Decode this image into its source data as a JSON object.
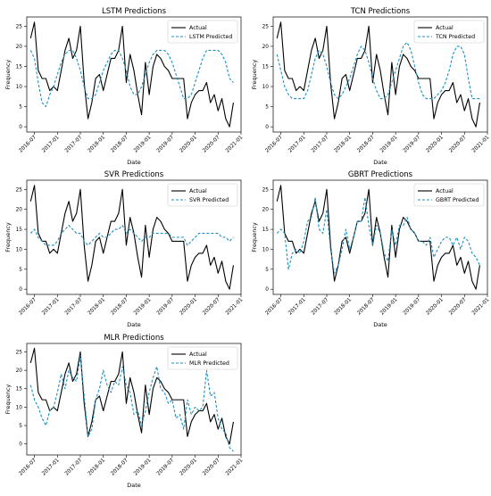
{
  "colors": {
    "actual": "#000000",
    "predicted": "#1f8fbf"
  },
  "chart_data": [
    {
      "type": "line",
      "title": "LSTM Predictions",
      "xlabel": "Date",
      "ylabel": "Frequency",
      "x": [
        "2016-06",
        "2016-07",
        "2016-08",
        "2016-09",
        "2016-10",
        "2016-11",
        "2016-12",
        "2017-01",
        "2017-02",
        "2017-03",
        "2017-04",
        "2017-05",
        "2017-06",
        "2017-07",
        "2017-08",
        "2017-09",
        "2017-10",
        "2017-11",
        "2017-12",
        "2018-01",
        "2018-02",
        "2018-03",
        "2018-04",
        "2018-05",
        "2018-06",
        "2018-07",
        "2018-08",
        "2018-09",
        "2018-10",
        "2018-11",
        "2018-12",
        "2019-01",
        "2019-02",
        "2019-03",
        "2019-04",
        "2019-05",
        "2019-06",
        "2019-07",
        "2019-08",
        "2019-09",
        "2019-10",
        "2019-11",
        "2019-12",
        "2020-01",
        "2020-02",
        "2020-03",
        "2020-04",
        "2020-05",
        "2020-06",
        "2020-07",
        "2020-08",
        "2020-09",
        "2020-10",
        "2020-11"
      ],
      "xticks": [
        "2016-07",
        "2017-01",
        "2017-07",
        "2018-01",
        "2018-07",
        "2019-01",
        "2019-07",
        "2020-01",
        "2020-07",
        "2021-01"
      ],
      "yticks": [
        0,
        5,
        10,
        15,
        20,
        25
      ],
      "ylim": [
        -1.3,
        27.3
      ],
      "xlim": [
        "2016-05",
        "2021-01"
      ],
      "legend": "upper right",
      "series": [
        {
          "name": "Actual",
          "style": "solid",
          "values": [
            22,
            26,
            14,
            12,
            12,
            9,
            10,
            9,
            14,
            19,
            22,
            17,
            19,
            25,
            11,
            2,
            6,
            12,
            13,
            9,
            13,
            17,
            17,
            19,
            25,
            11,
            18,
            14,
            8,
            3,
            16,
            8,
            15,
            18,
            17,
            15,
            14,
            12,
            12,
            12,
            12,
            2,
            6,
            8,
            9,
            9,
            11,
            6,
            8,
            4,
            7,
            2,
            0,
            6
          ]
        },
        {
          "name": "LSTM Predicted",
          "style": "dashed",
          "values": [
            19,
            17,
            11,
            6,
            5,
            8,
            10,
            13,
            16,
            18,
            19,
            19,
            17,
            14,
            10,
            7,
            7,
            8,
            11,
            14,
            16,
            18,
            19,
            19,
            17,
            14,
            10,
            8,
            8,
            10,
            13,
            16,
            18,
            19,
            19,
            19,
            18,
            16,
            13,
            10,
            7,
            7,
            8,
            11,
            14,
            17,
            19,
            19,
            19,
            19,
            18,
            16,
            12,
            11
          ]
        }
      ]
    },
    {
      "type": "line",
      "title": "TCN Predictions",
      "xlabel": "Date",
      "ylabel": "Frequency",
      "x": [
        "2016-06",
        "2016-07",
        "2016-08",
        "2016-09",
        "2016-10",
        "2016-11",
        "2016-12",
        "2017-01",
        "2017-02",
        "2017-03",
        "2017-04",
        "2017-05",
        "2017-06",
        "2017-07",
        "2017-08",
        "2017-09",
        "2017-10",
        "2017-11",
        "2017-12",
        "2018-01",
        "2018-02",
        "2018-03",
        "2018-04",
        "2018-05",
        "2018-06",
        "2018-07",
        "2018-08",
        "2018-09",
        "2018-10",
        "2018-11",
        "2018-12",
        "2019-01",
        "2019-02",
        "2019-03",
        "2019-04",
        "2019-05",
        "2019-06",
        "2019-07",
        "2019-08",
        "2019-09",
        "2019-10",
        "2019-11",
        "2019-12",
        "2020-01",
        "2020-02",
        "2020-03",
        "2020-04",
        "2020-05",
        "2020-06",
        "2020-07",
        "2020-08",
        "2020-09",
        "2020-10",
        "2020-11"
      ],
      "xticks": [
        "2016-07",
        "2017-01",
        "2017-07",
        "2018-01",
        "2018-07",
        "2019-01",
        "2019-07",
        "2020-01",
        "2020-07",
        "2021-01"
      ],
      "yticks": [
        0,
        5,
        10,
        15,
        20,
        25
      ],
      "ylim": [
        -1.3,
        27.3
      ],
      "xlim": [
        "2016-05",
        "2021-01"
      ],
      "legend": "upper right",
      "series": [
        {
          "name": "Actual",
          "style": "solid",
          "values": [
            22,
            26,
            14,
            12,
            12,
            9,
            10,
            9,
            14,
            19,
            22,
            17,
            19,
            25,
            11,
            2,
            6,
            12,
            13,
            9,
            13,
            17,
            17,
            19,
            25,
            11,
            18,
            14,
            8,
            3,
            16,
            8,
            15,
            18,
            17,
            15,
            14,
            12,
            12,
            12,
            12,
            2,
            6,
            8,
            9,
            9,
            11,
            6,
            8,
            4,
            7,
            2,
            0,
            6
          ]
        },
        {
          "name": "TCN Predicted",
          "style": "dashed",
          "values": [
            18,
            14,
            10,
            8,
            7,
            7,
            7,
            7,
            9,
            13,
            17,
            19,
            18,
            15,
            11,
            8,
            7,
            8,
            10,
            12,
            15,
            18,
            20,
            19,
            16,
            12,
            9,
            7,
            7,
            8,
            11,
            14,
            17,
            20,
            21,
            19,
            15,
            11,
            8,
            7,
            7,
            7,
            8,
            9,
            11,
            14,
            18,
            20,
            20,
            18,
            12,
            7,
            7,
            7
          ]
        }
      ]
    },
    {
      "type": "line",
      "title": "SVR Predictions",
      "xlabel": "Date",
      "ylabel": "Frequency",
      "x": [
        "2016-06",
        "2016-07",
        "2016-08",
        "2016-09",
        "2016-10",
        "2016-11",
        "2016-12",
        "2017-01",
        "2017-02",
        "2017-03",
        "2017-04",
        "2017-05",
        "2017-06",
        "2017-07",
        "2017-08",
        "2017-09",
        "2017-10",
        "2017-11",
        "2017-12",
        "2018-01",
        "2018-02",
        "2018-03",
        "2018-04",
        "2018-05",
        "2018-06",
        "2018-07",
        "2018-08",
        "2018-09",
        "2018-10",
        "2018-11",
        "2018-12",
        "2019-01",
        "2019-02",
        "2019-03",
        "2019-04",
        "2019-05",
        "2019-06",
        "2019-07",
        "2019-08",
        "2019-09",
        "2019-10",
        "2019-11",
        "2019-12",
        "2020-01",
        "2020-02",
        "2020-03",
        "2020-04",
        "2020-05",
        "2020-06",
        "2020-07",
        "2020-08",
        "2020-09",
        "2020-10",
        "2020-11"
      ],
      "xticks": [
        "2016-07",
        "2017-01",
        "2017-07",
        "2018-01",
        "2018-07",
        "2019-01",
        "2019-07",
        "2020-01",
        "2020-07",
        "2021-01"
      ],
      "yticks": [
        0,
        5,
        10,
        15,
        20,
        25
      ],
      "ylim": [
        -1.3,
        27.3
      ],
      "xlim": [
        "2016-05",
        "2021-01"
      ],
      "legend": "upper right",
      "series": [
        {
          "name": "Actual",
          "style": "solid",
          "values": [
            22,
            26,
            14,
            12,
            12,
            9,
            10,
            9,
            14,
            19,
            22,
            17,
            19,
            25,
            11,
            2,
            6,
            12,
            13,
            9,
            13,
            17,
            17,
            19,
            25,
            11,
            18,
            14,
            8,
            3,
            16,
            8,
            15,
            18,
            17,
            15,
            14,
            12,
            12,
            12,
            12,
            2,
            6,
            8,
            9,
            9,
            11,
            6,
            8,
            4,
            7,
            2,
            0,
            6
          ]
        },
        {
          "name": "SVR Predicted",
          "style": "dashed",
          "values": [
            14,
            15,
            13,
            12,
            11,
            11,
            11,
            12,
            14,
            15,
            16,
            15,
            14,
            14,
            12,
            11,
            12,
            13,
            14,
            13,
            13,
            14,
            15,
            15,
            16,
            14,
            15,
            14,
            13,
            12,
            13,
            13,
            14,
            14,
            14,
            14,
            14,
            13,
            13,
            13,
            13,
            11,
            12,
            13,
            14,
            14,
            14,
            14,
            14,
            14,
            13,
            13,
            12,
            13
          ]
        }
      ]
    },
    {
      "type": "line",
      "title": "GBRT Predictions",
      "xlabel": "Date",
      "ylabel": "Frequency",
      "x": [
        "2016-06",
        "2016-07",
        "2016-08",
        "2016-09",
        "2016-10",
        "2016-11",
        "2016-12",
        "2017-01",
        "2017-02",
        "2017-03",
        "2017-04",
        "2017-05",
        "2017-06",
        "2017-07",
        "2017-08",
        "2017-09",
        "2017-10",
        "2017-11",
        "2017-12",
        "2018-01",
        "2018-02",
        "2018-03",
        "2018-04",
        "2018-05",
        "2018-06",
        "2018-07",
        "2018-08",
        "2018-09",
        "2018-10",
        "2018-11",
        "2018-12",
        "2019-01",
        "2019-02",
        "2019-03",
        "2019-04",
        "2019-05",
        "2019-06",
        "2019-07",
        "2019-08",
        "2019-09",
        "2019-10",
        "2019-11",
        "2019-12",
        "2020-01",
        "2020-02",
        "2020-03",
        "2020-04",
        "2020-05",
        "2020-06",
        "2020-07",
        "2020-08",
        "2020-09",
        "2020-10",
        "2020-11"
      ],
      "xticks": [
        "2016-07",
        "2017-01",
        "2017-07",
        "2018-01",
        "2018-07",
        "2019-01",
        "2019-07",
        "2020-01",
        "2020-07",
        "2021-01"
      ],
      "yticks": [
        0,
        5,
        10,
        15,
        20,
        25
      ],
      "ylim": [
        -1.3,
        27.3
      ],
      "xlim": [
        "2016-05",
        "2021-01"
      ],
      "legend": "upper right",
      "series": [
        {
          "name": "Actual",
          "style": "solid",
          "values": [
            22,
            26,
            14,
            12,
            12,
            9,
            10,
            9,
            14,
            19,
            22,
            17,
            19,
            25,
            11,
            2,
            6,
            12,
            13,
            9,
            13,
            17,
            17,
            19,
            25,
            11,
            18,
            14,
            8,
            3,
            16,
            8,
            15,
            18,
            17,
            15,
            14,
            12,
            12,
            12,
            12,
            2,
            6,
            8,
            9,
            9,
            11,
            6,
            8,
            4,
            7,
            2,
            0,
            6
          ]
        },
        {
          "name": "GBRT Predicted",
          "style": "dashed",
          "values": [
            14,
            15,
            14,
            5,
            9,
            10,
            9,
            12,
            17,
            18,
            23,
            15,
            14,
            20,
            10,
            4,
            6,
            10,
            15,
            10,
            13,
            17,
            17,
            23,
            16,
            11,
            16,
            14,
            9,
            7,
            15,
            11,
            16,
            16,
            18,
            15,
            14,
            12,
            12,
            11,
            13,
            8,
            10,
            12,
            13,
            13,
            11,
            13,
            10,
            13,
            12,
            9,
            8,
            6
          ]
        }
      ]
    },
    {
      "type": "line",
      "title": "MLR Predictions",
      "xlabel": "Date",
      "ylabel": "Frequency",
      "x": [
        "2016-06",
        "2016-07",
        "2016-08",
        "2016-09",
        "2016-10",
        "2016-11",
        "2016-12",
        "2017-01",
        "2017-02",
        "2017-03",
        "2017-04",
        "2017-05",
        "2017-06",
        "2017-07",
        "2017-08",
        "2017-09",
        "2017-10",
        "2017-11",
        "2017-12",
        "2018-01",
        "2018-02",
        "2018-03",
        "2018-04",
        "2018-05",
        "2018-06",
        "2018-07",
        "2018-08",
        "2018-09",
        "2018-10",
        "2018-11",
        "2018-12",
        "2019-01",
        "2019-02",
        "2019-03",
        "2019-04",
        "2019-05",
        "2019-06",
        "2019-07",
        "2019-08",
        "2019-09",
        "2019-10",
        "2019-11",
        "2019-12",
        "2020-01",
        "2020-02",
        "2020-03",
        "2020-04",
        "2020-05",
        "2020-06",
        "2020-07",
        "2020-08",
        "2020-09",
        "2020-10",
        "2020-11"
      ],
      "xticks": [
        "2016-07",
        "2017-01",
        "2017-07",
        "2018-01",
        "2018-07",
        "2019-01",
        "2019-07",
        "2020-01",
        "2020-07",
        "2021-01"
      ],
      "yticks": [
        0,
        5,
        10,
        15,
        20,
        25
      ],
      "ylim": [
        -3.0,
        27.3
      ],
      "xlim": [
        "2016-05",
        "2021-01"
      ],
      "legend": "upper right",
      "series": [
        {
          "name": "Actual",
          "style": "solid",
          "values": [
            22,
            26,
            14,
            12,
            12,
            9,
            10,
            9,
            14,
            19,
            22,
            17,
            19,
            25,
            11,
            2,
            6,
            12,
            13,
            9,
            13,
            17,
            17,
            19,
            25,
            11,
            18,
            14,
            8,
            3,
            16,
            8,
            15,
            18,
            17,
            15,
            14,
            12,
            12,
            12,
            12,
            2,
            6,
            8,
            9,
            9,
            11,
            6,
            8,
            4,
            7,
            2,
            0,
            6
          ]
        },
        {
          "name": "MLR Predicted",
          "style": "dashed",
          "values": [
            16,
            12,
            10,
            7,
            5,
            9,
            10,
            14,
            19,
            15,
            20,
            18,
            17,
            24,
            13,
            2,
            4,
            12,
            15,
            20,
            16,
            14,
            17,
            16,
            21,
            16,
            14,
            8,
            9,
            5,
            9,
            14,
            18,
            21,
            15,
            14,
            11,
            12,
            7,
            8,
            4,
            12,
            8,
            10,
            9,
            10,
            20,
            13,
            14,
            7,
            4,
            3,
            -1,
            -2
          ]
        }
      ]
    }
  ]
}
